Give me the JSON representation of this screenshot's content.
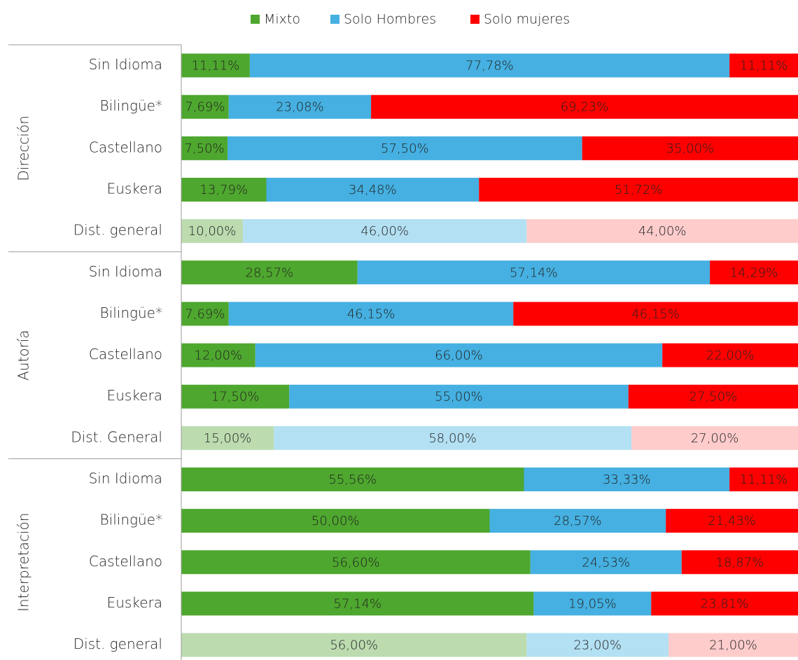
{
  "chart_data": {
    "type": "bar",
    "orientation": "horizontal",
    "stacked": true,
    "xlim": [
      0,
      100
    ],
    "legend": "top",
    "groups": [
      {
        "name": "Dirección",
        "categories": [
          "Sin Idioma",
          "Bilingüe*",
          "Castellano",
          "Euskera",
          "Dist. general"
        ]
      },
      {
        "name": "Autoría",
        "categories": [
          "Sin Idioma",
          "Bilingüe*",
          "Castellano",
          "Euskera",
          "Dist. General"
        ]
      },
      {
        "name": "Interpretación",
        "categories": [
          "Sin Idioma",
          "Bilingüe*",
          "Castellano",
          "Euskera",
          "Dist. general"
        ]
      }
    ],
    "series": [
      {
        "name": "Mixto",
        "color": "#4ea72e",
        "colors": [
          "#4ea72e",
          "#4ea72e",
          "#4ea72e",
          "#4ea72e",
          "#bcdcb0",
          "#4ea72e",
          "#4ea72e",
          "#4ea72e",
          "#4ea72e",
          "#bcdcb0",
          "#4ea72e",
          "#4ea72e",
          "#4ea72e",
          "#4ea72e",
          "#bcdcb0"
        ],
        "values": [
          11.11,
          7.69,
          7.5,
          13.79,
          10,
          28.57,
          7.69,
          12,
          17.5,
          15,
          55.56,
          50,
          56.6,
          57.14,
          56
        ],
        "value_labels": [
          "11,11%",
          "7,69%",
          "7,50%",
          "13,79%",
          "10,00%",
          "28,57%",
          "7,69%",
          "12,00%",
          "17,50%",
          "15,00%",
          "55,56%",
          "50,00%",
          "56,60%",
          "57,14%",
          "56,00%"
        ]
      },
      {
        "name": "Solo Hombres",
        "color": "#45b0e1",
        "colors": [
          "#45b0e1",
          "#45b0e1",
          "#45b0e1",
          "#45b0e1",
          "#b3e0f3",
          "#45b0e1",
          "#45b0e1",
          "#45b0e1",
          "#45b0e1",
          "#b3e0f3",
          "#45b0e1",
          "#45b0e1",
          "#45b0e1",
          "#45b0e1",
          "#b3e0f3"
        ],
        "values": [
          77.78,
          23.08,
          57.5,
          34.48,
          46,
          57.14,
          46.15,
          66,
          55,
          58,
          33.33,
          28.57,
          24.53,
          19.05,
          23
        ],
        "value_labels": [
          "77,78%",
          "23,08%",
          "57,50%",
          "34,48%",
          "46,00%",
          "57,14%",
          "46,15%",
          "66,00%",
          "55,00%",
          "58,00%",
          "33,33%",
          "28,57%",
          "24,53%",
          "19,05%",
          "23,00%"
        ]
      },
      {
        "name": "Solo mujeres",
        "color": "#ff0000",
        "colors": [
          "#ff0000",
          "#ff0000",
          "#ff0000",
          "#ff0000",
          "#ffcccc",
          "#ff0000",
          "#ff0000",
          "#ff0000",
          "#ff0000",
          "#ffcccc",
          "#ff0000",
          "#ff0000",
          "#ff0000",
          "#ff0000",
          "#ffcccc"
        ],
        "values": [
          11.11,
          69.23,
          35,
          51.72,
          44,
          14.29,
          46.15,
          22,
          27.5,
          27,
          11.11,
          21.43,
          18.87,
          23.81,
          21
        ],
        "value_labels": [
          "11,11%",
          "69,23%",
          "35,00%",
          "51,72%",
          "44,00%",
          "14,29%",
          "46,15%",
          "22,00%",
          "27,50%",
          "27,00%",
          "11,11%",
          "21,43%",
          "18,87%",
          "23,81%",
          "21,00%"
        ]
      }
    ]
  }
}
